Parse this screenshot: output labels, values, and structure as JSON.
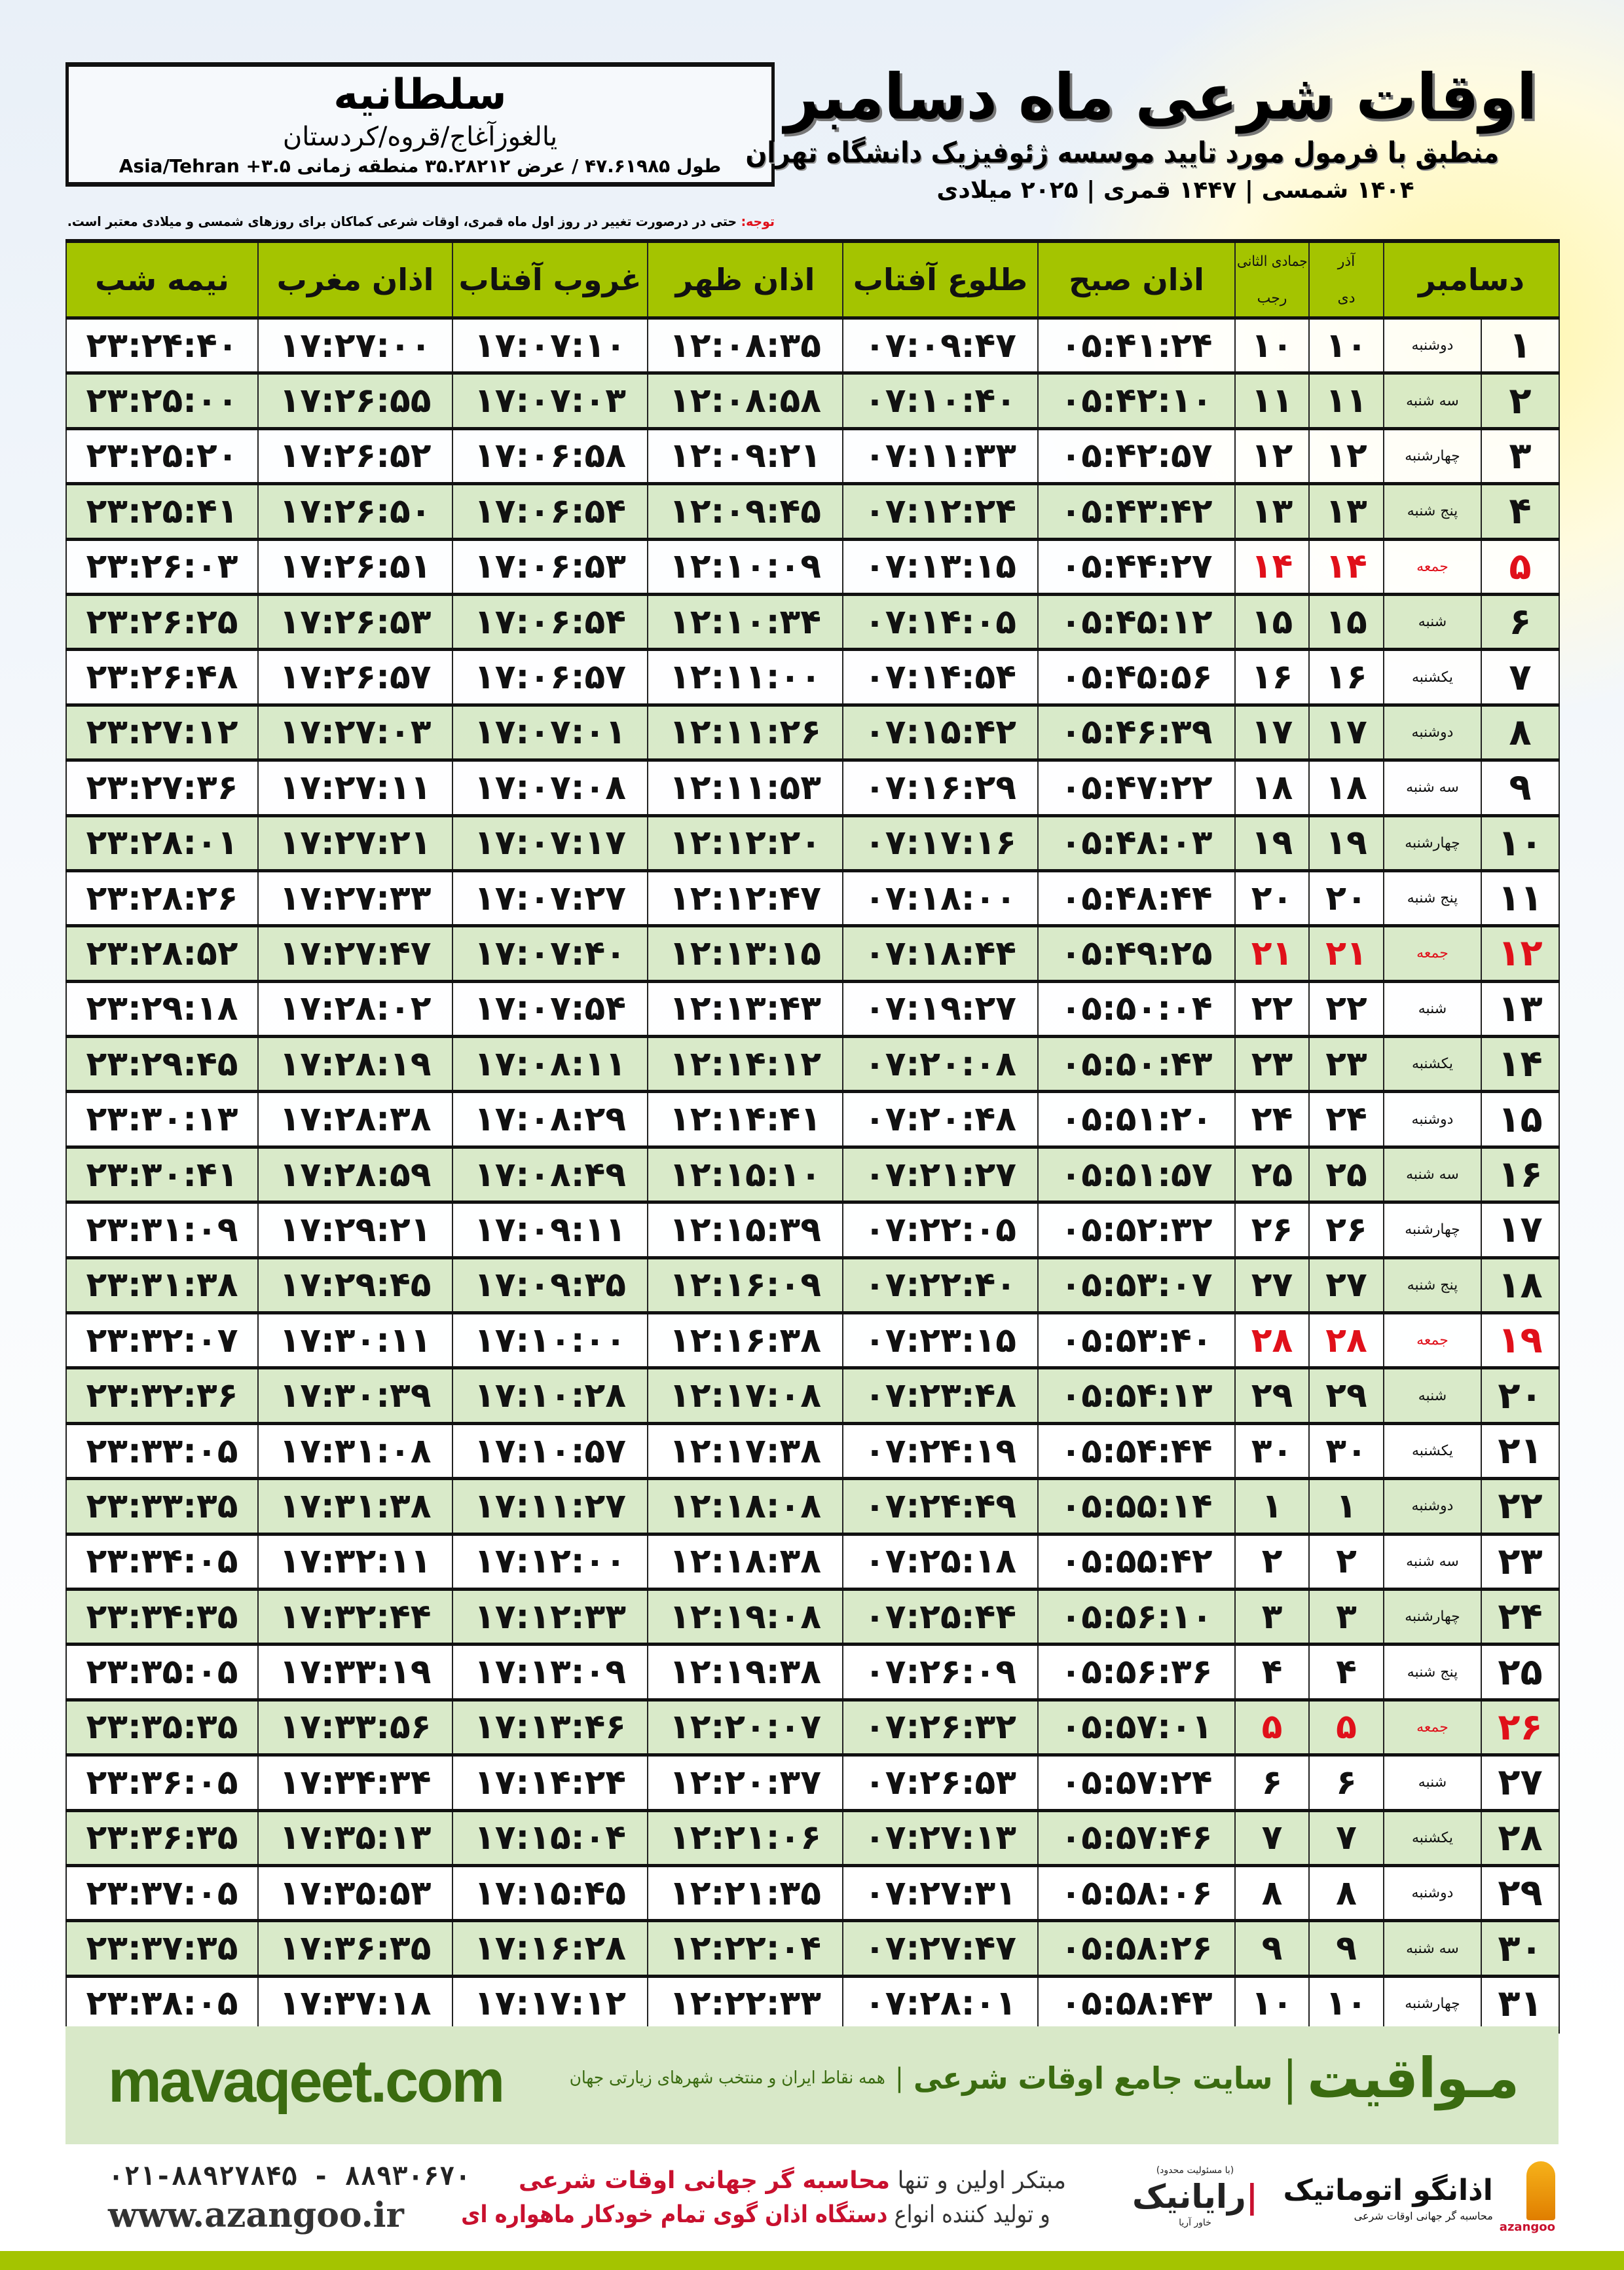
{
  "header": {
    "title": "اوقات شرعی ماه دسامبر",
    "subtitle": "منطبق با فرمول مورد تایید موسسه ژئوفیزیک دانشگاه تهران",
    "dates": "۱۴۰۴ شمسی | ۱۴۴۷ قمری | ۲۰۲۵ میلادی"
  },
  "location": {
    "city": "سلطانیه",
    "province": "یالغوزآغاج/قروه/کردستان",
    "coords": "طول ۴۷.۶۱۹۸۵ / عرض ۳۵.۲۸۲۱۲ منطقه زمانی ۳.۵+ Asia/Tehran"
  },
  "note": {
    "label": "توجه:",
    "text": " حتی در درصورت تغییر در روز اول ماه قمری، اوقات شرعی کماکان برای روزهای شمسی و میلادی معتبر است."
  },
  "colors": {
    "header_green": "#a4c400",
    "row_green": "#d6e8c4",
    "holiday_red": "#e0101a",
    "brand_green": "#3a6b10"
  },
  "table": {
    "headers": {
      "day": "دسامبر",
      "solar_top": "آذر",
      "solar_bottom": "دی",
      "lunar_top": "جمادی الثانی",
      "lunar_bottom": "رجب",
      "sobh": "اذان صبح",
      "tolu": "طلوع آفتاب",
      "zohr": "اذان ظهر",
      "ghorub": "غروب آفتاب",
      "maghrib": "اذان مغرب",
      "nimeh": "نیمه شب"
    },
    "rows": [
      [
        "۱",
        "دوشنبه",
        "۱۰",
        "۱۰",
        "۰۵:۴۱:۲۴",
        "۰۷:۰۹:۴۷",
        "۱۲:۰۸:۳۵",
        "۱۷:۰۷:۱۰",
        "۱۷:۲۷:۰۰",
        "۲۳:۲۴:۴۰",
        false
      ],
      [
        "۲",
        "سه شنبه",
        "۱۱",
        "۱۱",
        "۰۵:۴۲:۱۰",
        "۰۷:۱۰:۴۰",
        "۱۲:۰۸:۵۸",
        "۱۷:۰۷:۰۳",
        "۱۷:۲۶:۵۵",
        "۲۳:۲۵:۰۰",
        false
      ],
      [
        "۳",
        "چهارشنبه",
        "۱۲",
        "۱۲",
        "۰۵:۴۲:۵۷",
        "۰۷:۱۱:۳۳",
        "۱۲:۰۹:۲۱",
        "۱۷:۰۶:۵۸",
        "۱۷:۲۶:۵۲",
        "۲۳:۲۵:۲۰",
        false
      ],
      [
        "۴",
        "پنج شنبه",
        "۱۳",
        "۱۳",
        "۰۵:۴۳:۴۲",
        "۰۷:۱۲:۲۴",
        "۱۲:۰۹:۴۵",
        "۱۷:۰۶:۵۴",
        "۱۷:۲۶:۵۰",
        "۲۳:۲۵:۴۱",
        false
      ],
      [
        "۵",
        "جمعه",
        "۱۴",
        "۱۴",
        "۰۵:۴۴:۲۷",
        "۰۷:۱۳:۱۵",
        "۱۲:۱۰:۰۹",
        "۱۷:۰۶:۵۳",
        "۱۷:۲۶:۵۱",
        "۲۳:۲۶:۰۳",
        true
      ],
      [
        "۶",
        "شنبه",
        "۱۵",
        "۱۵",
        "۰۵:۴۵:۱۲",
        "۰۷:۱۴:۰۵",
        "۱۲:۱۰:۳۴",
        "۱۷:۰۶:۵۴",
        "۱۷:۲۶:۵۳",
        "۲۳:۲۶:۲۵",
        false
      ],
      [
        "۷",
        "یکشنبه",
        "۱۶",
        "۱۶",
        "۰۵:۴۵:۵۶",
        "۰۷:۱۴:۵۴",
        "۱۲:۱۱:۰۰",
        "۱۷:۰۶:۵۷",
        "۱۷:۲۶:۵۷",
        "۲۳:۲۶:۴۸",
        false
      ],
      [
        "۸",
        "دوشنبه",
        "۱۷",
        "۱۷",
        "۰۵:۴۶:۳۹",
        "۰۷:۱۵:۴۲",
        "۱۲:۱۱:۲۶",
        "۱۷:۰۷:۰۱",
        "۱۷:۲۷:۰۳",
        "۲۳:۲۷:۱۲",
        false
      ],
      [
        "۹",
        "سه شنبه",
        "۱۸",
        "۱۸",
        "۰۵:۴۷:۲۲",
        "۰۷:۱۶:۲۹",
        "۱۲:۱۱:۵۳",
        "۱۷:۰۷:۰۸",
        "۱۷:۲۷:۱۱",
        "۲۳:۲۷:۳۶",
        false
      ],
      [
        "۱۰",
        "چهارشنبه",
        "۱۹",
        "۱۹",
        "۰۵:۴۸:۰۳",
        "۰۷:۱۷:۱۶",
        "۱۲:۱۲:۲۰",
        "۱۷:۰۷:۱۷",
        "۱۷:۲۷:۲۱",
        "۲۳:۲۸:۰۱",
        false
      ],
      [
        "۱۱",
        "پنج شنبه",
        "۲۰",
        "۲۰",
        "۰۵:۴۸:۴۴",
        "۰۷:۱۸:۰۰",
        "۱۲:۱۲:۴۷",
        "۱۷:۰۷:۲۷",
        "۱۷:۲۷:۳۳",
        "۲۳:۲۸:۲۶",
        false
      ],
      [
        "۱۲",
        "جمعه",
        "۲۱",
        "۲۱",
        "۰۵:۴۹:۲۵",
        "۰۷:۱۸:۴۴",
        "۱۲:۱۳:۱۵",
        "۱۷:۰۷:۴۰",
        "۱۷:۲۷:۴۷",
        "۲۳:۲۸:۵۲",
        true
      ],
      [
        "۱۳",
        "شنبه",
        "۲۲",
        "۲۲",
        "۰۵:۵۰:۰۴",
        "۰۷:۱۹:۲۷",
        "۱۲:۱۳:۴۳",
        "۱۷:۰۷:۵۴",
        "۱۷:۲۸:۰۲",
        "۲۳:۲۹:۱۸",
        false
      ],
      [
        "۱۴",
        "یکشنبه",
        "۲۳",
        "۲۳",
        "۰۵:۵۰:۴۳",
        "۰۷:۲۰:۰۸",
        "۱۲:۱۴:۱۲",
        "۱۷:۰۸:۱۱",
        "۱۷:۲۸:۱۹",
        "۲۳:۲۹:۴۵",
        false
      ],
      [
        "۱۵",
        "دوشنبه",
        "۲۴",
        "۲۴",
        "۰۵:۵۱:۲۰",
        "۰۷:۲۰:۴۸",
        "۱۲:۱۴:۴۱",
        "۱۷:۰۸:۲۹",
        "۱۷:۲۸:۳۸",
        "۲۳:۳۰:۱۳",
        false
      ],
      [
        "۱۶",
        "سه شنبه",
        "۲۵",
        "۲۵",
        "۰۵:۵۱:۵۷",
        "۰۷:۲۱:۲۷",
        "۱۲:۱۵:۱۰",
        "۱۷:۰۸:۴۹",
        "۱۷:۲۸:۵۹",
        "۲۳:۳۰:۴۱",
        false
      ],
      [
        "۱۷",
        "چهارشنبه",
        "۲۶",
        "۲۶",
        "۰۵:۵۲:۳۲",
        "۰۷:۲۲:۰۵",
        "۱۲:۱۵:۳۹",
        "۱۷:۰۹:۱۱",
        "۱۷:۲۹:۲۱",
        "۲۳:۳۱:۰۹",
        false
      ],
      [
        "۱۸",
        "پنج شنبه",
        "۲۷",
        "۲۷",
        "۰۵:۵۳:۰۷",
        "۰۷:۲۲:۴۰",
        "۱۲:۱۶:۰۹",
        "۱۷:۰۹:۳۵",
        "۱۷:۲۹:۴۵",
        "۲۳:۳۱:۳۸",
        false
      ],
      [
        "۱۹",
        "جمعه",
        "۲۸",
        "۲۸",
        "۰۵:۵۳:۴۰",
        "۰۷:۲۳:۱۵",
        "۱۲:۱۶:۳۸",
        "۱۷:۱۰:۰۰",
        "۱۷:۳۰:۱۱",
        "۲۳:۳۲:۰۷",
        true
      ],
      [
        "۲۰",
        "شنبه",
        "۲۹",
        "۲۹",
        "۰۵:۵۴:۱۳",
        "۰۷:۲۳:۴۸",
        "۱۲:۱۷:۰۸",
        "۱۷:۱۰:۲۸",
        "۱۷:۳۰:۳۹",
        "۲۳:۳۲:۳۶",
        false
      ],
      [
        "۲۱",
        "یکشنبه",
        "۳۰",
        "۳۰",
        "۰۵:۵۴:۴۴",
        "۰۷:۲۴:۱۹",
        "۱۲:۱۷:۳۸",
        "۱۷:۱۰:۵۷",
        "۱۷:۳۱:۰۸",
        "۲۳:۳۳:۰۵",
        false
      ],
      [
        "۲۲",
        "دوشنبه",
        "۱",
        "۱",
        "۰۵:۵۵:۱۴",
        "۰۷:۲۴:۴۹",
        "۱۲:۱۸:۰۸",
        "۱۷:۱۱:۲۷",
        "۱۷:۳۱:۳۸",
        "۲۳:۳۳:۳۵",
        false
      ],
      [
        "۲۳",
        "سه شنبه",
        "۲",
        "۲",
        "۰۵:۵۵:۴۲",
        "۰۷:۲۵:۱۸",
        "۱۲:۱۸:۳۸",
        "۱۷:۱۲:۰۰",
        "۱۷:۳۲:۱۱",
        "۲۳:۳۴:۰۵",
        false
      ],
      [
        "۲۴",
        "چهارشنبه",
        "۳",
        "۳",
        "۰۵:۵۶:۱۰",
        "۰۷:۲۵:۴۴",
        "۱۲:۱۹:۰۸",
        "۱۷:۱۲:۳۳",
        "۱۷:۳۲:۴۴",
        "۲۳:۳۴:۳۵",
        false
      ],
      [
        "۲۵",
        "پنج شنبه",
        "۴",
        "۴",
        "۰۵:۵۶:۳۶",
        "۰۷:۲۶:۰۹",
        "۱۲:۱۹:۳۸",
        "۱۷:۱۳:۰۹",
        "۱۷:۳۳:۱۹",
        "۲۳:۳۵:۰۵",
        false
      ],
      [
        "۲۶",
        "جمعه",
        "۵",
        "۵",
        "۰۵:۵۷:۰۱",
        "۰۷:۲۶:۳۲",
        "۱۲:۲۰:۰۷",
        "۱۷:۱۳:۴۶",
        "۱۷:۳۳:۵۶",
        "۲۳:۳۵:۳۵",
        true
      ],
      [
        "۲۷",
        "شنبه",
        "۶",
        "۶",
        "۰۵:۵۷:۲۴",
        "۰۷:۲۶:۵۳",
        "۱۲:۲۰:۳۷",
        "۱۷:۱۴:۲۴",
        "۱۷:۳۴:۳۴",
        "۲۳:۳۶:۰۵",
        false
      ],
      [
        "۲۸",
        "یکشنبه",
        "۷",
        "۷",
        "۰۵:۵۷:۴۶",
        "۰۷:۲۷:۱۳",
        "۱۲:۲۱:۰۶",
        "۱۷:۱۵:۰۴",
        "۱۷:۳۵:۱۳",
        "۲۳:۳۶:۳۵",
        false
      ],
      [
        "۲۹",
        "دوشنبه",
        "۸",
        "۸",
        "۰۵:۵۸:۰۶",
        "۰۷:۲۷:۳۱",
        "۱۲:۲۱:۳۵",
        "۱۷:۱۵:۴۵",
        "۱۷:۳۵:۵۳",
        "۲۳:۳۷:۰۵",
        false
      ],
      [
        "۳۰",
        "سه شنبه",
        "۹",
        "۹",
        "۰۵:۵۸:۲۶",
        "۰۷:۲۷:۴۷",
        "۱۲:۲۲:۰۴",
        "۱۷:۱۶:۲۸",
        "۱۷:۳۶:۳۵",
        "۲۳:۳۷:۳۵",
        false
      ],
      [
        "۳۱",
        "چهارشنبه",
        "۱۰",
        "۱۰",
        "۰۵:۵۸:۴۳",
        "۰۷:۲۸:۰۱",
        "۱۲:۲۲:۳۳",
        "۱۷:۱۷:۱۲",
        "۱۷:۳۷:۱۸",
        "۲۳:۳۸:۰۵",
        false
      ]
    ]
  },
  "banner": {
    "site": "mavaqeet.com",
    "brand": "مـواقیت",
    "slogan": "سایت جامع اوقات شرعی",
    "tagline": "همه نقاط ایران و منتخب شهرهای زیارتی جهان"
  },
  "footer": {
    "phones": "۰۲۱-۸۸۹۲۷۸۴۵ - ۸۸۹۳۰۶۷۰",
    "website": "www.azangoo.ir",
    "line1_a": "مبتکر اولین و تنها ",
    "line1_b": "محاسبه گر جهانی اوقات شرعی",
    "line2_a": "و تولید کننده انواع ",
    "line2_b": "دستگاه اذان گوی تمام خودکار ماهواره ای",
    "logo_raya": "رایانیک",
    "logo_raya_sub": "خاور آریا",
    "logo_raya_note": "(با مسئولیت محدود)",
    "logo_azangoo": "اذانگو اتوماتیک",
    "logo_azangoo_sub": "محاسبه گر جهانی اوقات شرعی",
    "logo_azangoo_latin": "azangoo"
  }
}
